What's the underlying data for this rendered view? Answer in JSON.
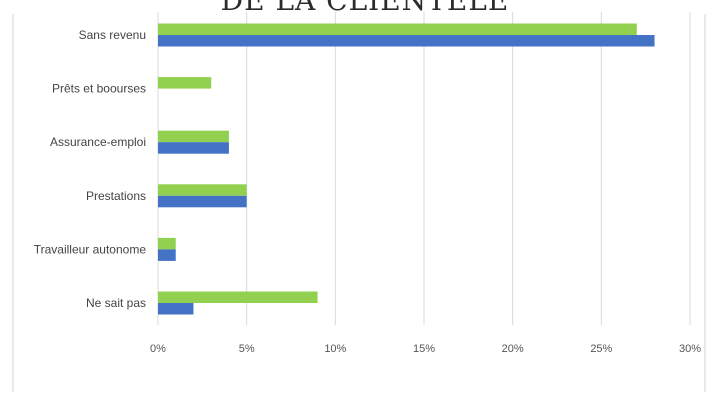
{
  "title_cut": "DE LA CLIENTÈLE",
  "chart_data": {
    "type": "bar",
    "orientation": "horizontal",
    "categories": [
      "Sans revenu",
      "Prêts et boourses",
      "Assurance-emploi",
      "Prestations",
      "Travailleur autonome",
      "Ne sait pas"
    ],
    "series": [
      {
        "values": [
          27,
          3,
          4,
          5,
          1,
          9
        ],
        "color": "#92d050"
      },
      {
        "values": [
          28,
          null,
          4,
          5,
          1,
          2
        ],
        "color": "#4472c4"
      }
    ],
    "xlim": [
      0,
      30
    ],
    "xticks": [
      0,
      5,
      10,
      15,
      20,
      25,
      30
    ],
    "tick_labels": [
      "0%",
      "5%",
      "10%",
      "15%",
      "20%",
      "25%",
      "30%"
    ],
    "grid": true,
    "legend": "none"
  }
}
